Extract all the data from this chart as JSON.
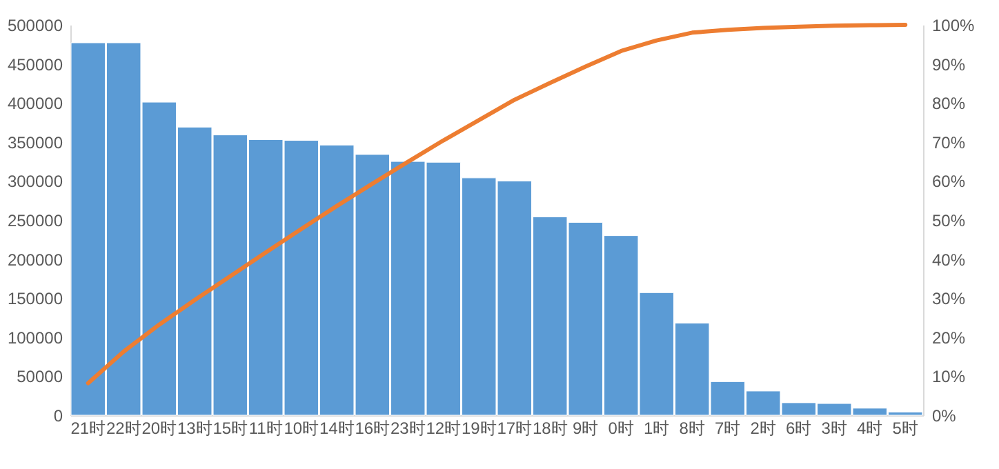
{
  "chart_data": {
    "type": "bar",
    "categories": [
      "21时",
      "22时",
      "20时",
      "13时",
      "15时",
      "11时",
      "10时",
      "14时",
      "16时",
      "23时",
      "12时",
      "19时",
      "17时",
      "18时",
      "9时",
      "0时",
      "1时",
      "8时",
      "7时",
      "2时",
      "6时",
      "3时",
      "4时",
      "5时"
    ],
    "series": [
      {
        "color": "#5b9bd5",
        "values": [
          477000,
          477000,
          401000,
          369000,
          359000,
          353000,
          352000,
          346000,
          334000,
          325000,
          324000,
          304000,
          300000,
          254000,
          247000,
          230000,
          157000,
          118000,
          43000,
          31000,
          16000,
          15000,
          9000,
          4000
        ]
      },
      {
        "type": "line",
        "axis": "y2",
        "color": "#ed7d31",
        "values": [
          8.2,
          16.3,
          23.2,
          29.5,
          35.6,
          41.7,
          47.7,
          53.6,
          59.3,
          64.9,
          70.4,
          75.6,
          80.8,
          85.1,
          89.3,
          93.3,
          96.0,
          98.0,
          98.7,
          99.2,
          99.5,
          99.8,
          99.9,
          100
        ]
      }
    ],
    "ylim": [
      0,
      500000
    ],
    "yticks": [
      0,
      50000,
      100000,
      150000,
      200000,
      250000,
      300000,
      350000,
      400000,
      450000,
      500000
    ],
    "y2lim": [
      0,
      100
    ],
    "y2ticks": [
      {
        "value": 0,
        "label": "0%"
      },
      {
        "value": 10,
        "label": "10%"
      },
      {
        "value": 20,
        "label": "20%"
      },
      {
        "value": 30,
        "label": "30%"
      },
      {
        "value": 40,
        "label": "40%"
      },
      {
        "value": 50,
        "label": "50%"
      },
      {
        "value": 60,
        "label": "60%"
      },
      {
        "value": 70,
        "label": "70%"
      },
      {
        "value": 80,
        "label": "80%"
      },
      {
        "value": 90,
        "label": "90%"
      },
      {
        "value": 100,
        "label": "100%"
      }
    ]
  }
}
